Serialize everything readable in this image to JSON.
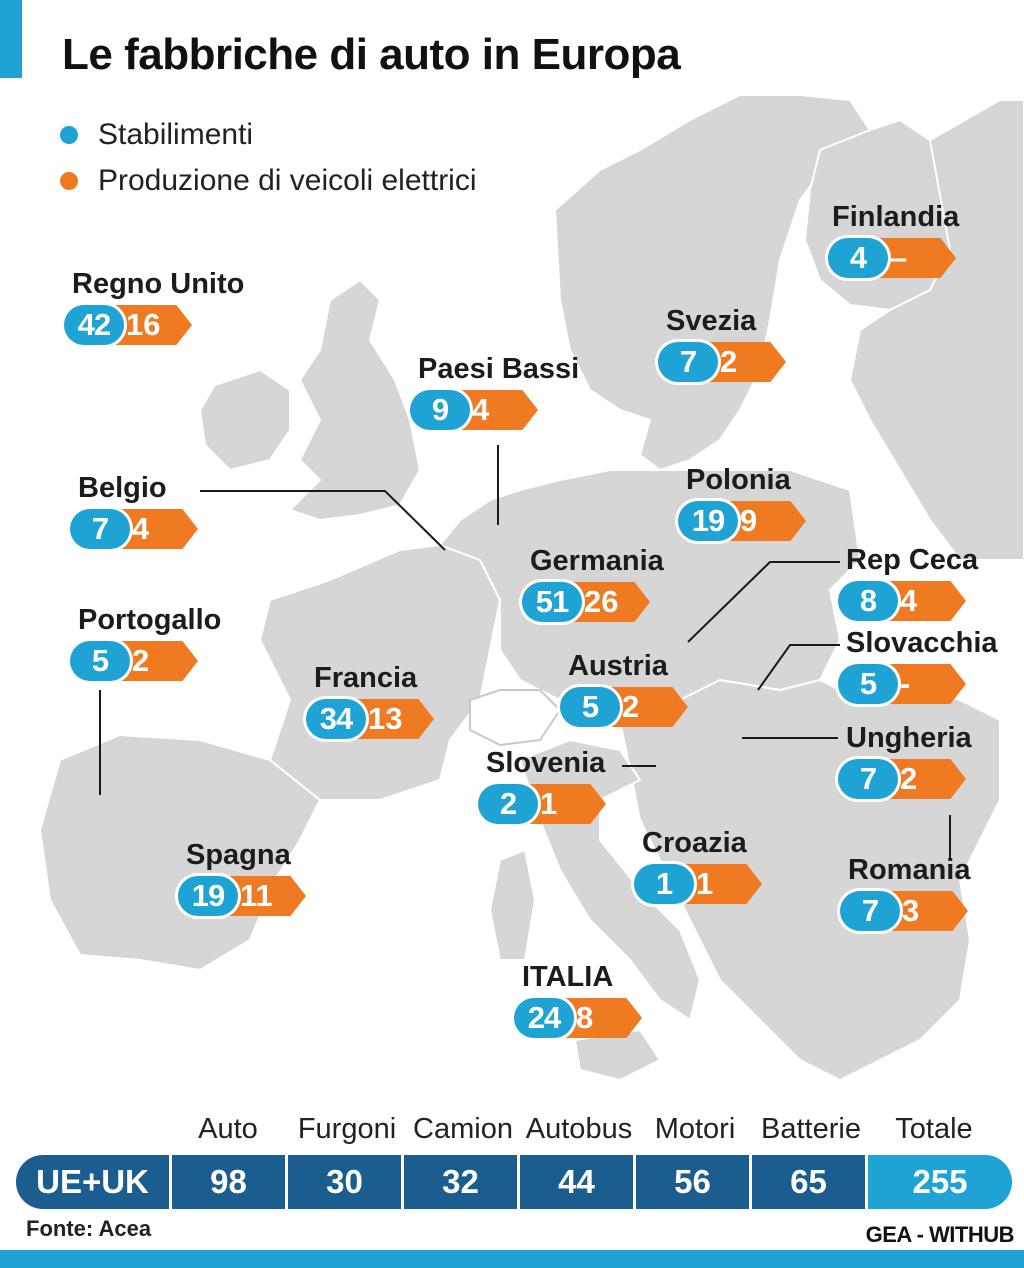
{
  "title": "Le fabbriche di auto in Europa",
  "legend": [
    {
      "label": "Stabilimenti",
      "color": "#1ea3d4"
    },
    {
      "label": "Produzione di veicoli elettrici",
      "color": "#f07a22"
    }
  ],
  "countries": [
    {
      "name": "Finlandia",
      "plants": "4",
      "ev": "–"
    },
    {
      "name": "Regno Unito",
      "plants": "42",
      "ev": "16"
    },
    {
      "name": "Svezia",
      "plants": "7",
      "ev": "2"
    },
    {
      "name": "Paesi Bassi",
      "plants": "9",
      "ev": "4"
    },
    {
      "name": "Belgio",
      "plants": "7",
      "ev": "4"
    },
    {
      "name": "Polonia",
      "plants": "19",
      "ev": "9"
    },
    {
      "name": "Germania",
      "plants": "51",
      "ev": "26"
    },
    {
      "name": "Rep Ceca",
      "plants": "8",
      "ev": "4"
    },
    {
      "name": "Portogallo",
      "plants": "5",
      "ev": "2"
    },
    {
      "name": "Slovacchia",
      "plants": "5",
      "ev": "-"
    },
    {
      "name": "Francia",
      "plants": "34",
      "ev": "13"
    },
    {
      "name": "Austria",
      "plants": "5",
      "ev": "2"
    },
    {
      "name": "Ungheria",
      "plants": "7",
      "ev": "2"
    },
    {
      "name": "Slovenia",
      "plants": "2",
      "ev": "1"
    },
    {
      "name": "Croazia",
      "plants": "1",
      "ev": "1"
    },
    {
      "name": "Spagna",
      "plants": "19",
      "ev": "11"
    },
    {
      "name": "Romania",
      "plants": "7",
      "ev": "3"
    },
    {
      "name": "ITALIA",
      "plants": "24",
      "ev": "8"
    }
  ],
  "summary": {
    "row_label": "UE+UK",
    "columns": [
      {
        "label": "Auto",
        "value": "98"
      },
      {
        "label": "Furgoni",
        "value": "30"
      },
      {
        "label": "Camion",
        "value": "32"
      },
      {
        "label": "Autobus",
        "value": "44"
      },
      {
        "label": "Motori",
        "value": "56"
      },
      {
        "label": "Batterie",
        "value": "65"
      },
      {
        "label": "Totale",
        "value": "255"
      }
    ]
  },
  "source": "Fonte: Acea",
  "credit": "GEA - WITHUB",
  "colors": {
    "land": "#d6d6d6",
    "border": "#ffffff",
    "row": "#1b5d8f",
    "total": "#1ea3d4"
  }
}
